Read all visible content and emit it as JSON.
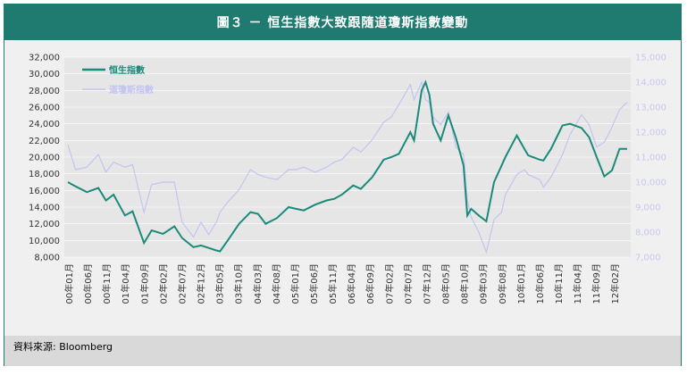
{
  "title": "圖３ － 恒生指數大致跟隨道瓊斯指數變動",
  "source": "資料來源: Bloomberg",
  "colors": {
    "hsi": "#1a8a7a",
    "dji": "#c4c4f2",
    "frame": "#1f7a70",
    "plot_bg": "#e6e6e6"
  },
  "chart_data": {
    "type": "line",
    "x_tick_labels": [
      "00年01月",
      "00年06月",
      "00年11月",
      "01年04月",
      "01年09月",
      "02年02月",
      "02年07月",
      "02年12月",
      "03年05月",
      "03年10月",
      "04年03月",
      "04年08月",
      "05年01月",
      "05年06月",
      "05年11月",
      "06年04月",
      "06年09月",
      "07年02月",
      "07年07月",
      "07年12月",
      "08年05月",
      "08年10月",
      "09年03月",
      "09年08月",
      "10年01月",
      "10年06月",
      "10年11月",
      "11年04月",
      "11年09月",
      "12年02月"
    ],
    "y_left": {
      "min": 8000,
      "max": 32000,
      "ticks": [
        "8,000",
        "10,000",
        "12,000",
        "14,000",
        "16,000",
        "18,000",
        "20,000",
        "22,000",
        "24,000",
        "26,000",
        "28,000",
        "30,000",
        "32,000"
      ]
    },
    "y_right": {
      "min": 7000,
      "max": 15000,
      "ticks": [
        "7,000",
        "8,000",
        "9,000",
        "10,000",
        "11,000",
        "12,000",
        "13,000",
        "14,000",
        "15,000"
      ]
    },
    "legend_position": "top-left",
    "series": [
      {
        "name": "恒生指數",
        "axis": "left",
        "x": [
          "2000-01",
          "2000-03",
          "2000-06",
          "2000-09",
          "2000-11",
          "2001-01",
          "2001-04",
          "2001-06",
          "2001-09",
          "2001-11",
          "2002-02",
          "2002-05",
          "2002-07",
          "2002-10",
          "2002-12",
          "2003-02",
          "2003-04",
          "2003-05",
          "2003-07",
          "2003-10",
          "2004-01",
          "2004-03",
          "2004-05",
          "2004-08",
          "2004-11",
          "2005-01",
          "2005-03",
          "2005-06",
          "2005-09",
          "2005-11",
          "2006-01",
          "2006-04",
          "2006-06",
          "2006-09",
          "2006-12",
          "2007-02",
          "2007-04",
          "2007-07",
          "2007-08",
          "2007-10",
          "2007-11",
          "2007-12",
          "2008-01",
          "2008-03",
          "2008-05",
          "2008-07",
          "2008-09",
          "2008-10",
          "2008-11",
          "2009-01",
          "2009-03",
          "2009-05",
          "2009-07",
          "2009-08",
          "2009-11",
          "2010-01",
          "2010-02",
          "2010-05",
          "2010-06",
          "2010-08",
          "2010-11",
          "2011-01",
          "2011-04",
          "2011-06",
          "2011-08",
          "2011-10",
          "2011-12",
          "2012-02",
          "2012-04"
        ],
        "values": [
          17000,
          16500,
          15800,
          16300,
          14800,
          15500,
          13000,
          13500,
          9700,
          11200,
          10800,
          11700,
          10300,
          9200,
          9400,
          9100,
          8800,
          8700,
          10000,
          12000,
          13400,
          13200,
          12000,
          12700,
          14000,
          13800,
          13600,
          14300,
          14800,
          15000,
          15500,
          16600,
          16200,
          17600,
          19700,
          20000,
          20400,
          23000,
          22000,
          28000,
          29000,
          27500,
          24000,
          22000,
          25000,
          22300,
          19000,
          13000,
          13800,
          13000,
          12300,
          17000,
          19000,
          20000,
          22600,
          21000,
          20200,
          19700,
          19600,
          21000,
          23800,
          24000,
          23500,
          22400,
          20000,
          17700,
          18400,
          21000,
          21000
        ]
      },
      {
        "name": "道瓊斯指數",
        "axis": "right",
        "x": [
          "2000-01",
          "2000-03",
          "2000-06",
          "2000-09",
          "2000-11",
          "2001-01",
          "2001-04",
          "2001-06",
          "2001-09",
          "2001-11",
          "2002-02",
          "2002-05",
          "2002-07",
          "2002-10",
          "2002-12",
          "2003-02",
          "2003-04",
          "2003-05",
          "2003-07",
          "2003-10",
          "2004-01",
          "2004-03",
          "2004-05",
          "2004-08",
          "2004-11",
          "2005-01",
          "2005-03",
          "2005-06",
          "2005-09",
          "2005-11",
          "2006-01",
          "2006-04",
          "2006-06",
          "2006-09",
          "2006-12",
          "2007-02",
          "2007-04",
          "2007-07",
          "2007-08",
          "2007-10",
          "2007-11",
          "2007-12",
          "2008-01",
          "2008-03",
          "2008-05",
          "2008-07",
          "2008-09",
          "2008-10",
          "2008-11",
          "2009-01",
          "2009-03",
          "2009-05",
          "2009-07",
          "2009-08",
          "2009-11",
          "2010-01",
          "2010-02",
          "2010-05",
          "2010-06",
          "2010-08",
          "2010-11",
          "2011-01",
          "2011-04",
          "2011-06",
          "2011-08",
          "2011-10",
          "2011-12",
          "2012-02",
          "2012-04"
        ],
        "values": [
          11500,
          10500,
          10600,
          11100,
          10400,
          10800,
          10600,
          10700,
          8800,
          9900,
          10000,
          10000,
          8400,
          7800,
          8400,
          7900,
          8400,
          8800,
          9200,
          9700,
          10500,
          10300,
          10200,
          10100,
          10500,
          10500,
          10600,
          10400,
          10600,
          10800,
          10900,
          11400,
          11200,
          11700,
          12400,
          12600,
          13100,
          13900,
          13300,
          14000,
          13300,
          13200,
          12600,
          12300,
          12800,
          11400,
          11100,
          9300,
          8600,
          8000,
          7200,
          8500,
          8800,
          9500,
          10300,
          10500,
          10300,
          10100,
          9800,
          10200,
          11100,
          11900,
          12700,
          12300,
          11400,
          11600,
          12200,
          12900,
          13200
        ]
      }
    ]
  }
}
